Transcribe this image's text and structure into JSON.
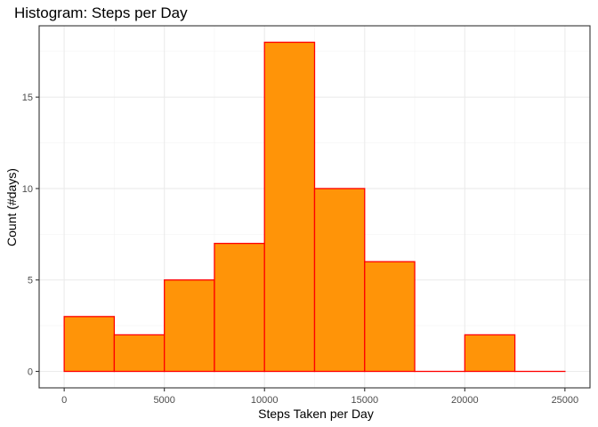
{
  "chart_data": {
    "type": "bar",
    "subtype": "histogram",
    "title": "Histogram: Steps per Day",
    "xlabel": "Steps Taken per Day",
    "ylabel": "Count (#days)",
    "bins": [
      {
        "start": 0,
        "end": 2500,
        "count": 3
      },
      {
        "start": 2500,
        "end": 5000,
        "count": 2
      },
      {
        "start": 5000,
        "end": 7500,
        "count": 5
      },
      {
        "start": 7500,
        "end": 10000,
        "count": 7
      },
      {
        "start": 10000,
        "end": 12500,
        "count": 18
      },
      {
        "start": 12500,
        "end": 15000,
        "count": 10
      },
      {
        "start": 15000,
        "end": 17500,
        "count": 6
      },
      {
        "start": 17500,
        "end": 20000,
        "count": 0
      },
      {
        "start": 20000,
        "end": 22500,
        "count": 2
      },
      {
        "start": 22500,
        "end": 25000,
        "count": 0
      }
    ],
    "xlim": [
      -1250,
      26250
    ],
    "ylim": [
      -0.9,
      18.9
    ],
    "x_ticks": [
      0,
      5000,
      10000,
      15000,
      20000,
      25000
    ],
    "x_tick_labels": [
      "0",
      "5000",
      "10000",
      "15000",
      "20000",
      "25000"
    ],
    "y_ticks": [
      0,
      5,
      10,
      15
    ],
    "y_tick_labels": [
      "0",
      "5",
      "10",
      "15"
    ],
    "x_minor_ticks": [
      2500,
      7500,
      12500,
      17500,
      22500
    ],
    "y_minor_ticks": [
      2.5,
      7.5,
      12.5,
      17.5
    ],
    "bar_fill": "#ff9408",
    "bar_outline": "#ff0000",
    "grid": true,
    "legend": "none",
    "theme": "bw"
  }
}
